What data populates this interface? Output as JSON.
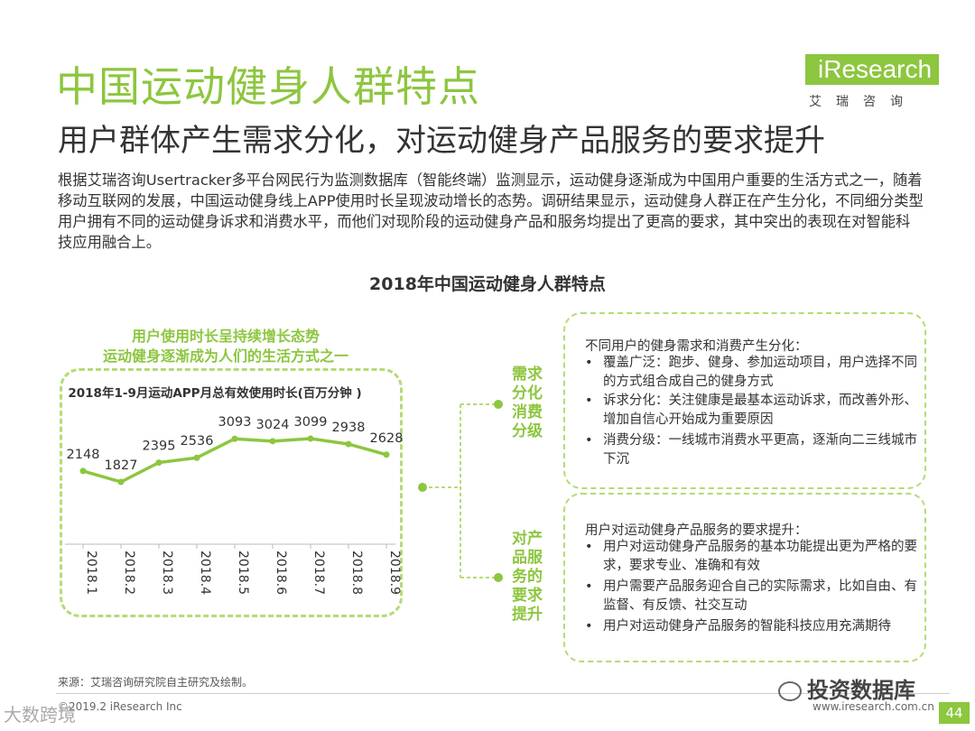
{
  "header": {
    "title": "中国运动健身人群特点",
    "subtitle": "用户群体产生需求分化，对运动健身产品服务的要求提升",
    "logo_text": "iResearch",
    "logo_sub": "艾瑞咨询"
  },
  "intro": "根据艾瑞咨询Usertracker多平台网民行为监测数据库（智能终端）监测显示，运动健身逐渐成为中国用户重要的生活方式之一，随着移动互联网的发展，中国运动健身线上APP使用时长呈现波动增长的态势。调研结果显示，运动健身人群正在产生分化，不同细分类型用户拥有不同的运动健身诉求和消费水平，而他们对现阶段的运动健身产品和服务均提出了更高的要求，其中突出的表现在对智能科技应用融合上。",
  "figure_heading": "2018年中国运动健身人群特点",
  "left_panel": {
    "caption1": "用户使用时长呈持续增长态势",
    "caption2": "运动健身逐渐成为人们的生活方式之一"
  },
  "chart_data": {
    "type": "line",
    "title": "2018年1-9月运动APP月总有效使用时长(百万分钟 )",
    "categories": [
      "2018.1",
      "2018.2",
      "2018.3",
      "2018.4",
      "2018.5",
      "2018.6",
      "2018.7",
      "2018.8",
      "2018.9"
    ],
    "values": [
      2148,
      1827,
      2395,
      2536,
      3093,
      3024,
      3099,
      2938,
      2628
    ],
    "color": "#8dc63f",
    "grid": false
  },
  "middle_labels": {
    "label1": "需求分化消费分级",
    "label2": "对产品服务的要求提升"
  },
  "box1": {
    "title": "不同用户的健身需求和消费产生分化：",
    "bullets": [
      "覆盖广泛：跑步、健身、参加运动项目，用户选择不同的方式组合成自己的健身方式",
      "诉求分化：关注健康是最基本运动诉求，而改善外形、增加自信心开始成为重要原因",
      "消费分级：一线城市消费水平更高，逐渐向二三线城市下沉"
    ]
  },
  "box2": {
    "title": "用户对运动健身产品服务的要求提升：",
    "bullets": [
      "用户对运动健身产品服务的基本功能提出更为严格的要求，要求专业、准确和有效",
      "用户需要产品服务迎合自己的实际需求，比如自由、有监督、有反馈、社交互动",
      "用户对运动健身产品服务的智能科技应用充满期待"
    ]
  },
  "footer": {
    "source": "来源：艾瑞咨询研究院自主研究及绘制。",
    "copyright": "©2019.2 iResearch Inc",
    "website": "www.iresearch.com.cn",
    "page": "44",
    "watermark_right": "投资数据库",
    "watermark_left": "大数跨境"
  },
  "colors": {
    "accent": "#8dc63f",
    "dashed_border": "#b5dc74"
  }
}
